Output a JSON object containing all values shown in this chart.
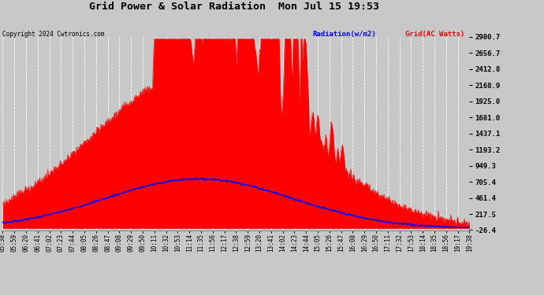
{
  "title": "Grid Power & Solar Radiation  Mon Jul 15 19:53",
  "copyright": "Copyright 2024 Cwtronics.com",
  "legend_radiation": "Radiation(w/m2)",
  "legend_grid": "Grid(AC Watts)",
  "ylabel_right_ticks": [
    2900.7,
    2656.7,
    2412.8,
    2168.9,
    1925.0,
    1681.0,
    1437.1,
    1193.2,
    949.3,
    705.4,
    461.4,
    217.5,
    -26.4
  ],
  "ymin": -26.4,
  "ymax": 2900.7,
  "background_color": "#c8c8c8",
  "plot_bg_color": "#c8c8c8",
  "grid_color": "#ffffff",
  "radiation_color": "#0000ff",
  "grid_power_color": "#ff0000",
  "fill_color": "#ff0000",
  "x_labels": [
    "05:38",
    "05:59",
    "06:20",
    "06:41",
    "07:02",
    "07:23",
    "07:44",
    "08:05",
    "08:26",
    "08:47",
    "09:08",
    "09:29",
    "09:50",
    "10:11",
    "10:32",
    "10:53",
    "11:14",
    "11:35",
    "11:56",
    "12:17",
    "12:38",
    "12:59",
    "13:20",
    "13:41",
    "14:02",
    "14:23",
    "14:44",
    "15:05",
    "15:26",
    "15:47",
    "16:08",
    "16:29",
    "16:50",
    "17:11",
    "17:32",
    "17:53",
    "18:14",
    "18:35",
    "18:56",
    "19:17",
    "19:38"
  ]
}
